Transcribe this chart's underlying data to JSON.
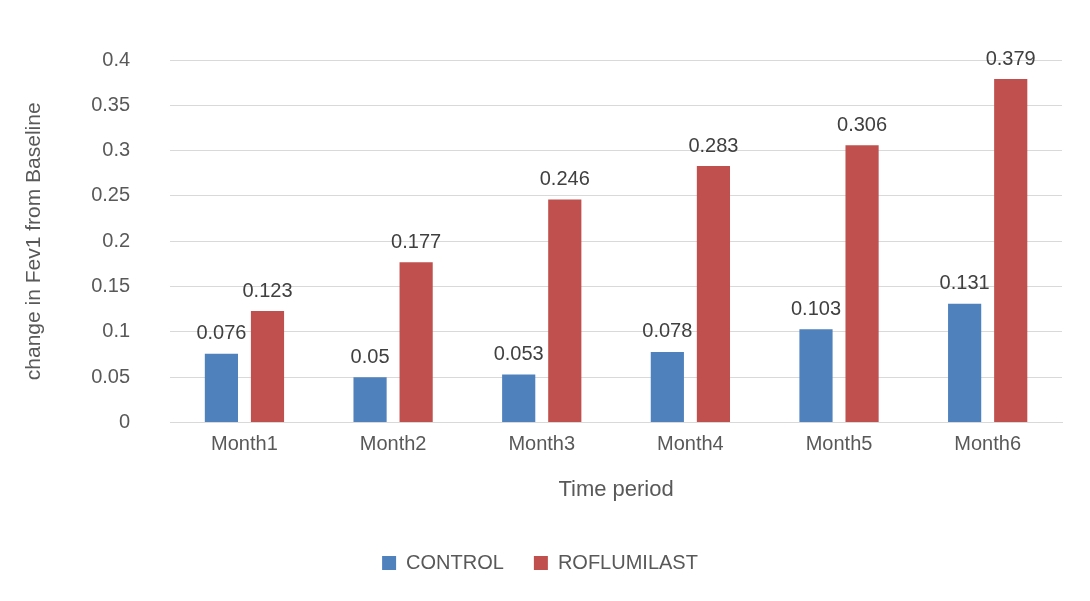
{
  "chart_data": {
    "type": "bar",
    "xlabel": "Time period",
    "ylabel": "change in Fev1 from Baseline",
    "categories": [
      "Month1",
      "Month2",
      "Month3",
      "Month4",
      "Month5",
      "Month6"
    ],
    "series": [
      {
        "name": "CONTROL",
        "color": "#4f81bd",
        "values": [
          0.076,
          0.05,
          0.053,
          0.078,
          0.103,
          0.131
        ]
      },
      {
        "name": "ROFLUMILAST",
        "color": "#c0504d",
        "values": [
          0.123,
          0.177,
          0.246,
          0.283,
          0.306,
          0.379
        ]
      }
    ],
    "ylim": [
      0,
      0.4
    ],
    "yticks": [
      0,
      0.05,
      0.1,
      0.15,
      0.2,
      0.25,
      0.3,
      0.35,
      0.4
    ],
    "grid": "y",
    "legend": "bottom",
    "data_labels": true
  }
}
